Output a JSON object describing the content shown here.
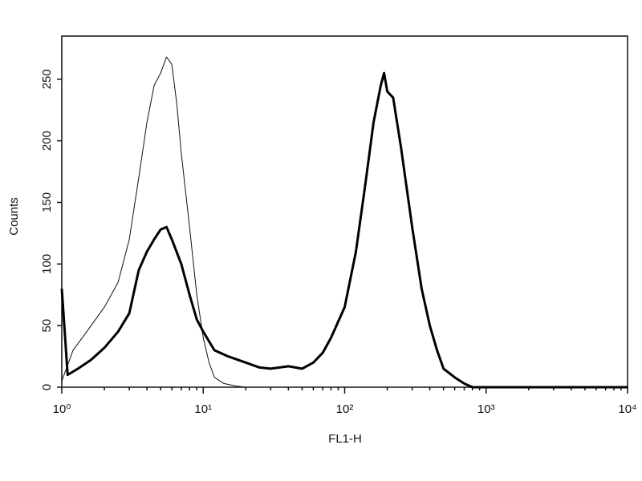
{
  "chart_data": {
    "type": "line",
    "x_label": "FL1-H",
    "y_label": "Counts",
    "log_x": true,
    "xlim": [
      1,
      10000
    ],
    "ylim": [
      0,
      285
    ],
    "xticks": [
      {
        "value": 1,
        "label": "10⁰"
      },
      {
        "value": 10,
        "label": "10¹"
      },
      {
        "value": 100,
        "label": "10²"
      },
      {
        "value": 1000,
        "label": "10³"
      },
      {
        "value": 10000,
        "label": "10⁴"
      }
    ],
    "yticks": [
      0,
      50,
      100,
      150,
      200,
      250
    ],
    "series": [
      {
        "color": "#111111",
        "width": 1,
        "x": [
          1,
          1.2,
          1.5,
          2,
          2.5,
          3,
          3.5,
          4,
          4.5,
          5,
          5.5,
          6,
          6.5,
          7,
          8,
          9,
          10,
          11,
          12,
          14,
          17,
          20,
          30,
          100,
          1000,
          10000
        ],
        "values": [
          5,
          30,
          45,
          65,
          85,
          120,
          170,
          215,
          245,
          255,
          268,
          262,
          230,
          190,
          130,
          75,
          40,
          20,
          8,
          3,
          1,
          0,
          0,
          0,
          0,
          0
        ]
      },
      {
        "color": "#000000",
        "width": 3,
        "x": [
          1,
          1.1,
          1.3,
          1.6,
          2,
          2.5,
          3,
          3.5,
          4,
          4.5,
          5,
          5.5,
          6,
          7,
          8,
          9,
          10,
          12,
          15,
          20,
          25,
          30,
          40,
          50,
          60,
          70,
          80,
          100,
          120,
          140,
          160,
          180,
          190,
          200,
          220,
          250,
          300,
          350,
          400,
          450,
          500,
          600,
          700,
          800,
          1000,
          10000
        ],
        "values": [
          80,
          10,
          15,
          22,
          32,
          45,
          60,
          95,
          110,
          120,
          128,
          130,
          120,
          100,
          75,
          55,
          45,
          30,
          25,
          20,
          16,
          15,
          17,
          15,
          20,
          28,
          40,
          65,
          110,
          165,
          215,
          245,
          255,
          240,
          235,
          195,
          130,
          80,
          50,
          30,
          15,
          8,
          3,
          0,
          0,
          0
        ]
      }
    ]
  }
}
